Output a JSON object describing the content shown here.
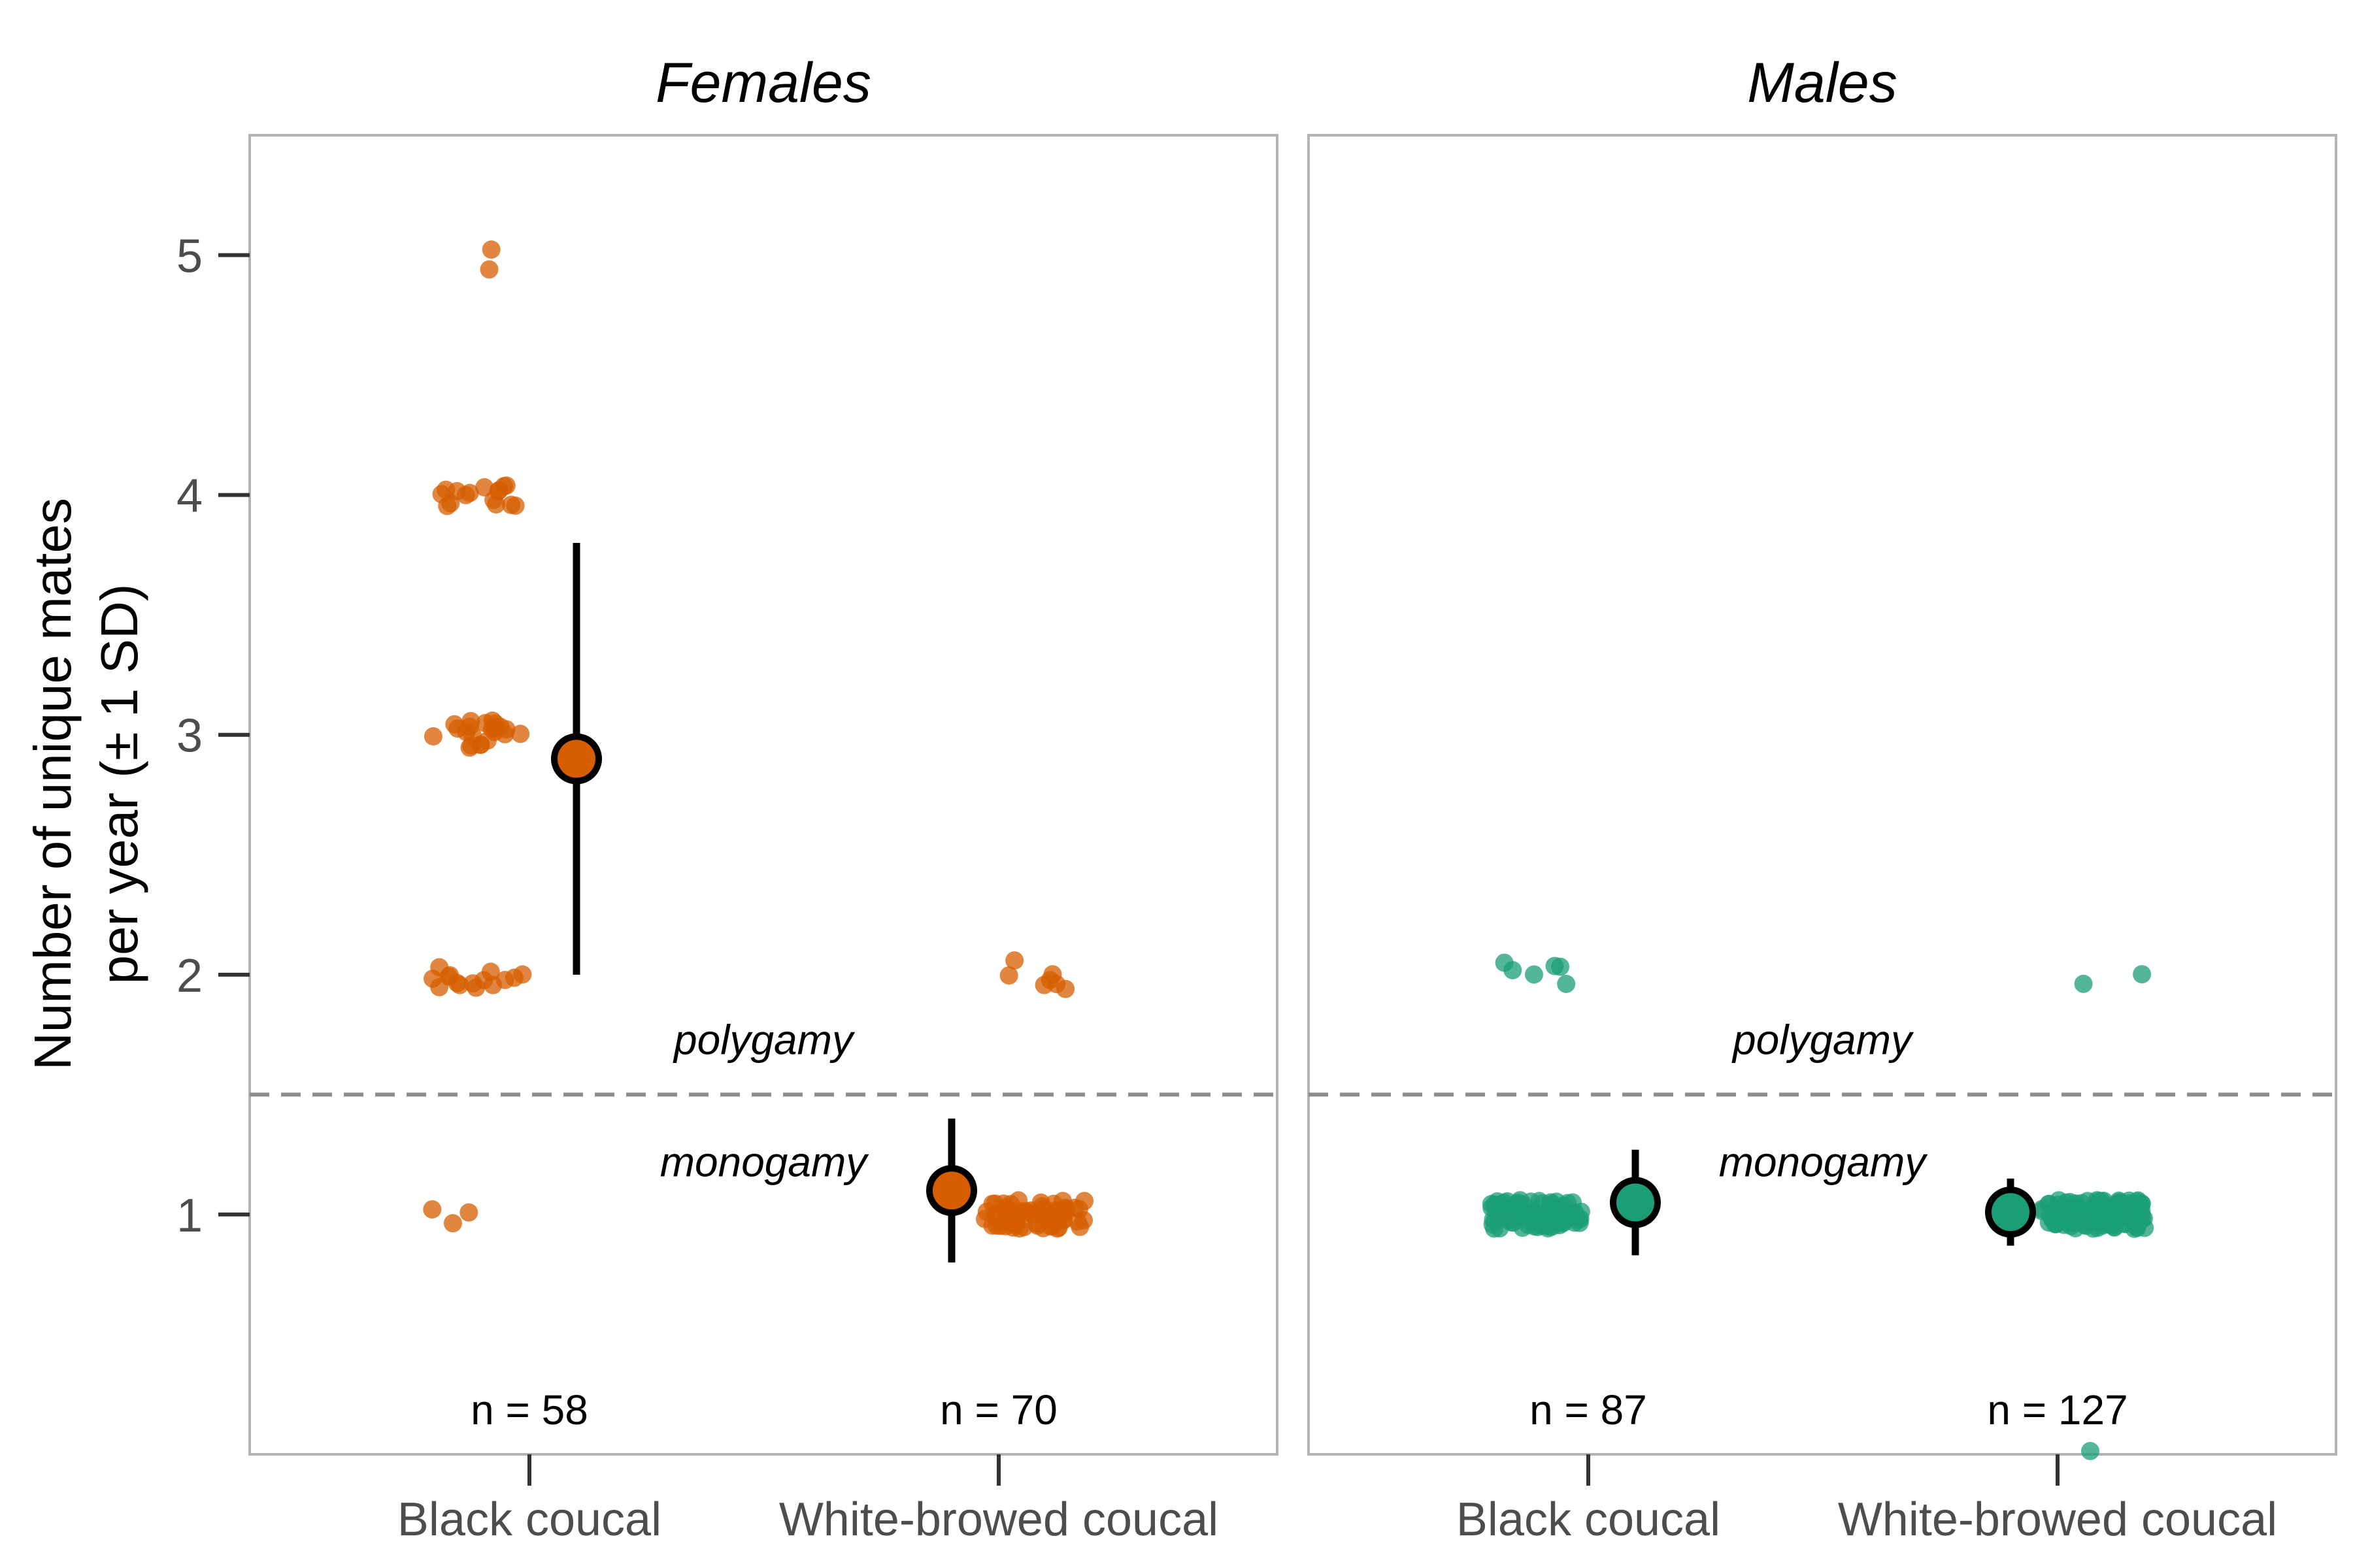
{
  "chart_data": {
    "type": "scatter",
    "ylabel_lines": [
      "Number of unique mates",
      "per year (± 1 SD)"
    ],
    "ylim": [
      0,
      5.5
    ],
    "yticks": [
      1,
      2,
      3,
      4,
      5
    ],
    "categories": [
      "Black coucal",
      "White-browed coucal"
    ],
    "threshold": {
      "value": 1.5,
      "above_label": "polygamy",
      "below_label": "monogamy"
    },
    "colors": {
      "Females": "#d55e00",
      "Males": "#1b9e77"
    },
    "panels": [
      {
        "title": "Females",
        "groups": [
          {
            "category": "Black coucal",
            "n_label": "n = 58",
            "mean": 2.9,
            "sd_low": 2.0,
            "sd_high": 3.8,
            "points": [
              {
                "y": 5,
                "count": 2
              },
              {
                "y": 4,
                "count": 16
              },
              {
                "y": 3,
                "count": 22
              },
              {
                "y": 2,
                "count": 15
              },
              {
                "y": 1,
                "count": 3
              }
            ]
          },
          {
            "category": "White-browed coucal",
            "n_label": "n = 70",
            "mean": 1.1,
            "sd_low": 0.8,
            "sd_high": 1.4,
            "points": [
              {
                "y": 2,
                "count": 7
              },
              {
                "y": 1,
                "count": 63
              }
            ]
          }
        ]
      },
      {
        "title": "Males",
        "groups": [
          {
            "category": "Black coucal",
            "n_label": "n = 87",
            "mean": 1.05,
            "sd_low": 0.83,
            "sd_high": 1.27,
            "points": [
              {
                "y": 2,
                "count": 6
              },
              {
                "y": 1,
                "count": 81
              }
            ]
          },
          {
            "category": "White-browed coucal",
            "n_label": "n = 127",
            "mean": 1.01,
            "sd_low": 0.87,
            "sd_high": 1.15,
            "points": [
              {
                "y": 2,
                "count": 2
              },
              {
                "y": 1,
                "count": 124
              },
              {
                "y": 0,
                "count": 1
              }
            ]
          }
        ]
      }
    ]
  }
}
